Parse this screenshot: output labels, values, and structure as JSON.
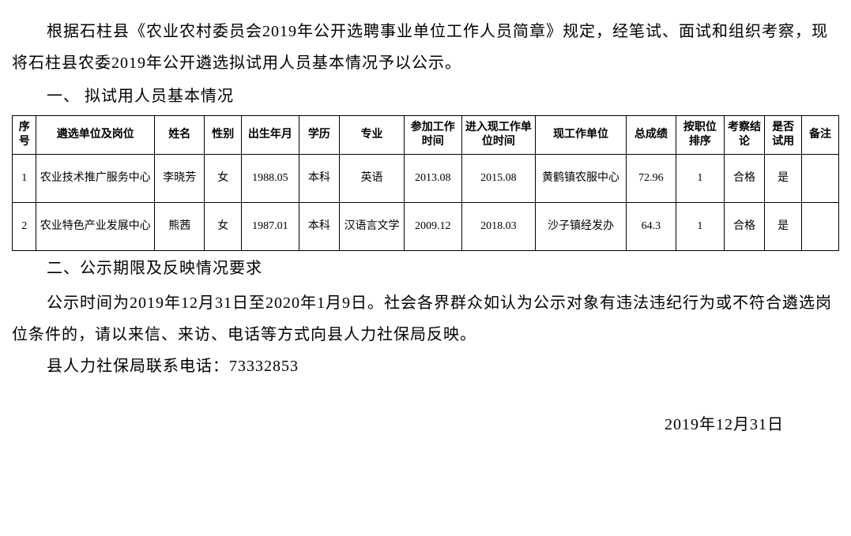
{
  "intro": {
    "p1": "根据石柱县《农业农村委员会2019年公开选聘事业单位工作人员简章》规定，经笔试、面试和组织考察，现将石柱县农委2019年公开遴选拟试用人员基本情况予以公示。"
  },
  "section1": {
    "heading": "一、 拟试用人员基本情况"
  },
  "table": {
    "headers": {
      "seq": "序号",
      "unit": "遴选单位及岗位",
      "name": "姓名",
      "gender": "性别",
      "birth": "出生年月",
      "edu": "学历",
      "major": "专业",
      "part": "参加工作时间",
      "enter": "进入现工作单位时间",
      "work": "现工作单位",
      "score": "总成绩",
      "rank": "按职位排序",
      "exam": "考察结论",
      "trial": "是否试用",
      "remark": "备注"
    },
    "rows": [
      {
        "seq": "1",
        "unit": "农业技术推广服务中心",
        "name": "李晓芳",
        "gender": "女",
        "birth": "1988.05",
        "edu": "本科",
        "major": "英语",
        "part": "2013.08",
        "enter": "2015.08",
        "work": "黄鹤镇农服中心",
        "score": "72.96",
        "rank": "1",
        "exam": "合格",
        "trial": "是",
        "remark": ""
      },
      {
        "seq": "2",
        "unit": "农业特色产业发展中心",
        "name": "熊茜",
        "gender": "女",
        "birth": "1987.01",
        "edu": "本科",
        "major": "汉语言文学",
        "part": "2009.12",
        "enter": "2018.03",
        "work": "沙子镇经发办",
        "score": "64.3",
        "rank": "1",
        "exam": "合格",
        "trial": "是",
        "remark": ""
      }
    ]
  },
  "section2": {
    "heading": "二、公示期限及反映情况要求",
    "p1": "公示时间为2019年12月31日至2020年1月9日。社会各界群众如认为公示对象有违法违纪行为或不符合遴选岗位条件的，请以来信、来访、电话等方式向县人力社保局反映。",
    "p2": "县人力社保局联系电话：73332853"
  },
  "signature": {
    "date": "2019年12月31日"
  },
  "style": {
    "background": "#ffffff",
    "text_color": "#000000",
    "border_color": "#000000",
    "body_fontsize": 20,
    "table_fontsize": 14
  }
}
